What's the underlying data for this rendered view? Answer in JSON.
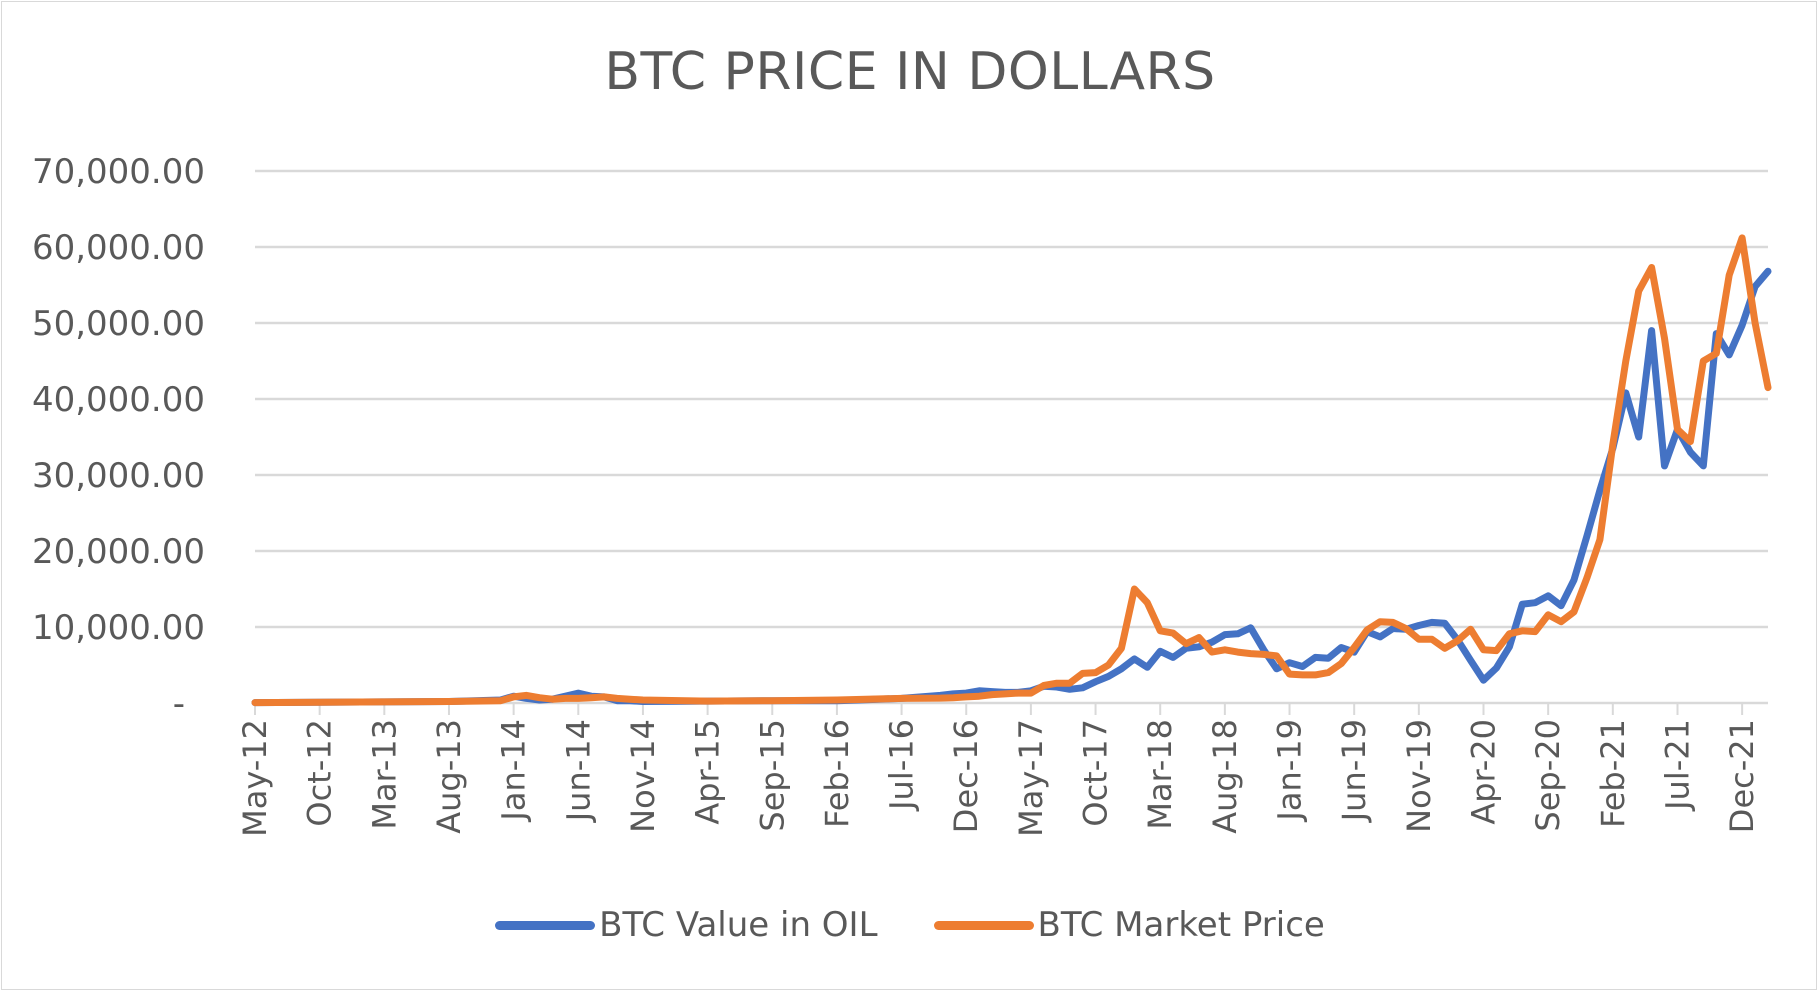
{
  "colors": {
    "series_1": "#4472C4",
    "series_2": "#ED7D31",
    "grid": "#d9d9d9",
    "text": "#595959"
  },
  "chart_data": {
    "type": "line",
    "title": "BTC PRICE IN DOLLARS",
    "xlabel": "",
    "ylabel": "",
    "ylim": [
      0,
      70000
    ],
    "y_ticks": [
      "-",
      "10,000.00",
      "20,000.00",
      "30,000.00",
      "40,000.00",
      "50,000.00",
      "60,000.00",
      "70,000.00"
    ],
    "grid": true,
    "legend": "bottom",
    "x_tick_labels": [
      "May-12",
      "Oct-12",
      "Mar-13",
      "Aug-13",
      "Jan-14",
      "Jun-14",
      "Nov-14",
      "Apr-15",
      "Sep-15",
      "Feb-16",
      "Jul-16",
      "Dec-16",
      "May-17",
      "Oct-17",
      "Mar-18",
      "Aug-18",
      "Jan-19",
      "Jun-19",
      "Nov-19",
      "Apr-20",
      "Sep-20",
      "Feb-21",
      "Jul-21",
      "Dec-21"
    ],
    "series": [
      {
        "name": "BTC Value in OIL",
        "color": "#4472C4",
        "points": [
          [
            "May-12",
            50
          ],
          [
            "Oct-12",
            100
          ],
          [
            "Mar-13",
            150
          ],
          [
            "Aug-13",
            200
          ],
          [
            "Dec-13",
            400
          ],
          [
            "Jan-14",
            900
          ],
          [
            "Feb-14",
            600
          ],
          [
            "Mar-14",
            400
          ],
          [
            "Apr-14",
            500
          ],
          [
            "May-14",
            900
          ],
          [
            "Jun-14",
            1300
          ],
          [
            "Jul-14",
            900
          ],
          [
            "Aug-14",
            800
          ],
          [
            "Sep-14",
            300
          ],
          [
            "Oct-14",
            300
          ],
          [
            "Nov-14",
            200
          ],
          [
            "Apr-15",
            250
          ],
          [
            "Sep-15",
            300
          ],
          [
            "Feb-16",
            300
          ],
          [
            "Jul-16",
            600
          ],
          [
            "Oct-16",
            1000
          ],
          [
            "Nov-16",
            1200
          ],
          [
            "Dec-16",
            1300
          ],
          [
            "Jan-17",
            1600
          ],
          [
            "Feb-17",
            1500
          ],
          [
            "Mar-17",
            1400
          ],
          [
            "Apr-17",
            1400
          ],
          [
            "May-17",
            1600
          ],
          [
            "Jun-17",
            2200
          ],
          [
            "Jul-17",
            2100
          ],
          [
            "Aug-17",
            1800
          ],
          [
            "Sep-17",
            2000
          ],
          [
            "Oct-17",
            2800
          ],
          [
            "Nov-17",
            3500
          ],
          [
            "Dec-17",
            4500
          ],
          [
            "Jan-18",
            5800
          ],
          [
            "Feb-18",
            4700
          ],
          [
            "Mar-18",
            6800
          ],
          [
            "Apr-18",
            6000
          ],
          [
            "May-18",
            7200
          ],
          [
            "Jun-18",
            7400
          ],
          [
            "Jul-18",
            8000
          ],
          [
            "Aug-18",
            9000
          ],
          [
            "Sep-18",
            9100
          ],
          [
            "Oct-18",
            9900
          ],
          [
            "Nov-18",
            7000
          ],
          [
            "Dec-18",
            4500
          ],
          [
            "Jan-19",
            5300
          ],
          [
            "Feb-19",
            4800
          ],
          [
            "Mar-19",
            6000
          ],
          [
            "Apr-19",
            5900
          ],
          [
            "May-19",
            7300
          ],
          [
            "Jun-19",
            6700
          ],
          [
            "Jul-19",
            9400
          ],
          [
            "Aug-19",
            8700
          ],
          [
            "Sep-19",
            9800
          ],
          [
            "Oct-19",
            9700
          ],
          [
            "Nov-19",
            10200
          ],
          [
            "Dec-19",
            10600
          ],
          [
            "Jan-20",
            10500
          ],
          [
            "Feb-20",
            8300
          ],
          [
            "Mar-20",
            5600
          ],
          [
            "Apr-20",
            3000
          ],
          [
            "May-20",
            4600
          ],
          [
            "Jun-20",
            7400
          ],
          [
            "Jul-20",
            13000
          ],
          [
            "Aug-20",
            13200
          ],
          [
            "Sep-20",
            14100
          ],
          [
            "Oct-20",
            12800
          ],
          [
            "Nov-20",
            16200
          ],
          [
            "Dec-20",
            22000
          ],
          [
            "Jan-21",
            28000
          ],
          [
            "Feb-21",
            33500
          ],
          [
            "Mar-21",
            40800
          ],
          [
            "Apr-21",
            35000
          ],
          [
            "May-21",
            49000
          ],
          [
            "Jun-21",
            31200
          ],
          [
            "Jul-21",
            36000
          ],
          [
            "Aug-21",
            33000
          ],
          [
            "Sep-21",
            31200
          ],
          [
            "Oct-21",
            48600
          ],
          [
            "Nov-21",
            45800
          ],
          [
            "Dec-21",
            49700
          ],
          [
            "Jan-22",
            54800
          ],
          [
            "Feb-22",
            56800
          ]
        ]
      },
      {
        "name": "BTC Market Price",
        "color": "#ED7D31",
        "points": [
          [
            "May-12",
            50
          ],
          [
            "Oct-12",
            100
          ],
          [
            "Mar-13",
            150
          ],
          [
            "Aug-13",
            200
          ],
          [
            "Dec-13",
            300
          ],
          [
            "Jan-14",
            800
          ],
          [
            "Feb-14",
            1000
          ],
          [
            "Mar-14",
            700
          ],
          [
            "Apr-14",
            500
          ],
          [
            "May-14",
            600
          ],
          [
            "Jun-14",
            600
          ],
          [
            "Jul-14",
            700
          ],
          [
            "Aug-14",
            800
          ],
          [
            "Sep-14",
            600
          ],
          [
            "Oct-14",
            500
          ],
          [
            "Nov-14",
            400
          ],
          [
            "Apr-15",
            250
          ],
          [
            "Sep-15",
            300
          ],
          [
            "Feb-16",
            400
          ],
          [
            "Jul-16",
            600
          ],
          [
            "Oct-16",
            650
          ],
          [
            "Nov-16",
            700
          ],
          [
            "Dec-16",
            800
          ],
          [
            "Jan-17",
            900
          ],
          [
            "Feb-17",
            1100
          ],
          [
            "Mar-17",
            1200
          ],
          [
            "Apr-17",
            1300
          ],
          [
            "May-17",
            1300
          ],
          [
            "Jun-17",
            2300
          ],
          [
            "Jul-17",
            2600
          ],
          [
            "Aug-17",
            2600
          ],
          [
            "Sep-17",
            3900
          ],
          [
            "Oct-17",
            4000
          ],
          [
            "Nov-17",
            5000
          ],
          [
            "Dec-17",
            7200
          ],
          [
            "Jan-18",
            15000
          ],
          [
            "Feb-18",
            13200
          ],
          [
            "Mar-18",
            9500
          ],
          [
            "Apr-18",
            9200
          ],
          [
            "May-18",
            7800
          ],
          [
            "Jun-18",
            8600
          ],
          [
            "Jul-18",
            6700
          ],
          [
            "Aug-18",
            7000
          ],
          [
            "Sep-18",
            6700
          ],
          [
            "Oct-18",
            6500
          ],
          [
            "Nov-18",
            6400
          ],
          [
            "Dec-18",
            6200
          ],
          [
            "Jan-19",
            3800
          ],
          [
            "Feb-19",
            3700
          ],
          [
            "Mar-19",
            3700
          ],
          [
            "Apr-19",
            4000
          ],
          [
            "May-19",
            5200
          ],
          [
            "Jun-19",
            7300
          ],
          [
            "Jul-19",
            9600
          ],
          [
            "Aug-19",
            10700
          ],
          [
            "Sep-19",
            10600
          ],
          [
            "Oct-19",
            9800
          ],
          [
            "Nov-19",
            8400
          ],
          [
            "Dec-19",
            8400
          ],
          [
            "Jan-20",
            7200
          ],
          [
            "Feb-20",
            8200
          ],
          [
            "Mar-20",
            9700
          ],
          [
            "Apr-20",
            7000
          ],
          [
            "May-20",
            6900
          ],
          [
            "Jun-20",
            9100
          ],
          [
            "Jul-20",
            9500
          ],
          [
            "Aug-20",
            9400
          ],
          [
            "Sep-20",
            11600
          ],
          [
            "Oct-20",
            10700
          ],
          [
            "Nov-20",
            12000
          ],
          [
            "Dec-20",
            16500
          ],
          [
            "Jan-21",
            21500
          ],
          [
            "Feb-21",
            34000
          ],
          [
            "Mar-21",
            45000
          ],
          [
            "Apr-21",
            54200
          ],
          [
            "May-21",
            57300
          ],
          [
            "Jun-21",
            48000
          ],
          [
            "Jul-21",
            36000
          ],
          [
            "Aug-21",
            34400
          ],
          [
            "Sep-21",
            45000
          ],
          [
            "Oct-21",
            46000
          ],
          [
            "Nov-21",
            56300
          ],
          [
            "Dec-21",
            61200
          ],
          [
            "Jan-22",
            50000
          ],
          [
            "Feb-22",
            41500
          ]
        ]
      }
    ]
  }
}
